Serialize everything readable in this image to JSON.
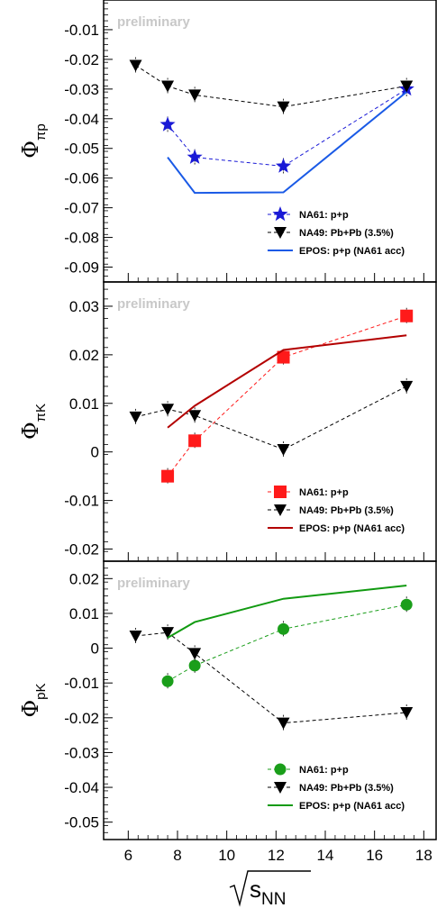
{
  "chart_data": [
    {
      "type": "line",
      "panel": "top",
      "ylabel_main": "Φ",
      "ylabel_sub": "πp",
      "annotation": "preliminary",
      "ylim": [
        -0.095,
        0.0
      ],
      "yticks": [
        -0.01,
        -0.02,
        -0.03,
        -0.04,
        -0.05,
        -0.06,
        -0.07,
        -0.08,
        -0.09
      ],
      "ytick_labels": [
        "-0.01",
        "-0.02",
        "-0.03",
        "-0.04",
        "-0.05",
        "-0.06",
        "-0.07",
        "-0.08",
        "-0.09"
      ],
      "series": [
        {
          "name": "NA61: p+p",
          "color": "#1a1ad6",
          "marker": "star",
          "dashed": true,
          "x": [
            7.6,
            8.7,
            12.3,
            17.3
          ],
          "y": [
            -0.042,
            -0.053,
            -0.056,
            -0.03
          ]
        },
        {
          "name": "NA49: Pb+Pb (3.5%)",
          "color": "#000000",
          "marker": "triangle-down",
          "dashed": true,
          "x": [
            6.3,
            7.6,
            8.7,
            12.3,
            17.3
          ],
          "y": [
            -0.022,
            -0.029,
            -0.032,
            -0.036,
            -0.029
          ]
        },
        {
          "name": "EPOS: p+p (NA61 acc)",
          "color": "#1a5ae6",
          "marker": "none",
          "dashed": false,
          "x": [
            7.6,
            8.7,
            12.3,
            17.3
          ],
          "y": [
            -0.053,
            -0.065,
            -0.0648,
            -0.031
          ]
        }
      ]
    },
    {
      "type": "line",
      "panel": "middle",
      "ylabel_main": "Φ",
      "ylabel_sub": "πK",
      "annotation": "preliminary",
      "ylim": [
        -0.0225,
        0.035
      ],
      "yticks": [
        0.03,
        0.02,
        0.01,
        0.0,
        -0.01,
        -0.02
      ],
      "ytick_labels": [
        "0.03",
        "0.02",
        "0.01",
        "0",
        "-0.01",
        "-0.02"
      ],
      "series": [
        {
          "name": "NA61: p+p",
          "color": "#ff1a1a",
          "marker": "square",
          "dashed": true,
          "x": [
            7.6,
            8.7,
            12.3,
            17.3
          ],
          "y": [
            -0.005,
            0.0023,
            0.0195,
            0.028
          ]
        },
        {
          "name": "NA49: Pb+Pb (3.5%)",
          "color": "#000000",
          "marker": "triangle-down",
          "dashed": true,
          "x": [
            6.3,
            7.6,
            8.7,
            12.3,
            17.3
          ],
          "y": [
            0.0072,
            0.0088,
            0.0075,
            0.0005,
            0.0135
          ]
        },
        {
          "name": "EPOS: p+p (NA61 acc)",
          "color": "#b30000",
          "marker": "none",
          "dashed": false,
          "x": [
            7.6,
            8.7,
            12.3,
            17.3
          ],
          "y": [
            0.005,
            0.0095,
            0.021,
            0.024
          ]
        }
      ]
    },
    {
      "type": "line",
      "panel": "bottom",
      "ylabel_main": "Φ",
      "ylabel_sub": "pK",
      "annotation": "preliminary",
      "xlabel": "√s_NN",
      "xlim": [
        5,
        18.5
      ],
      "xticks": [
        6,
        8,
        10,
        12,
        14,
        16,
        18
      ],
      "ylim": [
        -0.055,
        0.025
      ],
      "yticks": [
        0.02,
        0.01,
        0.0,
        -0.01,
        -0.02,
        -0.03,
        -0.04,
        -0.05
      ],
      "ytick_labels": [
        "0.02",
        "0.01",
        "0",
        "-0.01",
        "-0.02",
        "-0.03",
        "-0.04",
        "-0.05"
      ],
      "series": [
        {
          "name": "NA61: p+p",
          "color": "#1a9e1a",
          "marker": "circle",
          "dashed": true,
          "x": [
            7.6,
            8.7,
            12.3,
            17.3
          ],
          "y": [
            -0.0095,
            -0.005,
            0.0055,
            0.0125
          ]
        },
        {
          "name": "NA49: Pb+Pb (3.5%)",
          "color": "#000000",
          "marker": "triangle-down",
          "dashed": true,
          "x": [
            6.3,
            7.6,
            8.7,
            12.3,
            17.3
          ],
          "y": [
            0.0035,
            0.0045,
            -0.0015,
            -0.0215,
            -0.0185
          ]
        },
        {
          "name": "EPOS: p+p (NA61 acc)",
          "color": "#119a11",
          "marker": "none",
          "dashed": false,
          "x": [
            7.6,
            8.7,
            12.3,
            17.3
          ],
          "y": [
            0.003,
            0.0075,
            0.0142,
            0.018
          ]
        }
      ]
    }
  ]
}
